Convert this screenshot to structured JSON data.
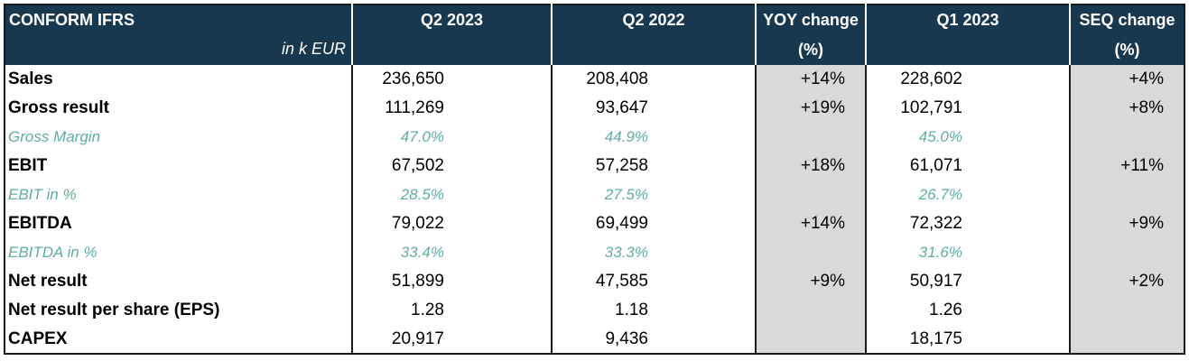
{
  "header": {
    "title": "CONFORM IFRS",
    "unit": "in k EUR",
    "col_q2_2023": "Q2 2023",
    "col_q2_2022": "Q2 2022",
    "col_yoy_line1": "YOY change",
    "col_yoy_line2": "(%)",
    "col_q1_2023": "Q1 2023",
    "col_seq_line1": "SEQ change",
    "col_seq_line2": "(%)"
  },
  "rows": [
    {
      "label": "Sales",
      "q2_2023": "236,650",
      "q2_2022": "208,408",
      "yoy": "+14%",
      "q1_2023": "228,602",
      "seq": "+4%"
    },
    {
      "label": "Gross result",
      "q2_2023": "111,269",
      "q2_2022": "93,647",
      "yoy": "+19%",
      "q1_2023": "102,791",
      "seq": "+8%"
    },
    {
      "label": "Gross Margin",
      "q2_2023": "47.0%",
      "q2_2022": "44.9%",
      "yoy": "",
      "q1_2023": "45.0%",
      "seq": ""
    },
    {
      "label": "EBIT",
      "q2_2023": "67,502",
      "q2_2022": "57,258",
      "yoy": "+18%",
      "q1_2023": "61,071",
      "seq": "+11%"
    },
    {
      "label": "EBIT in %",
      "q2_2023": "28.5%",
      "q2_2022": "27.5%",
      "yoy": "",
      "q1_2023": "26.7%",
      "seq": ""
    },
    {
      "label": "EBITDA",
      "q2_2023": "79,022",
      "q2_2022": "69,499",
      "yoy": "+14%",
      "q1_2023": "72,322",
      "seq": "+9%"
    },
    {
      "label": "EBITDA in %",
      "q2_2023": "33.4%",
      "q2_2022": "33.3%",
      "yoy": "",
      "q1_2023": "31.6%",
      "seq": ""
    },
    {
      "label": "Net result",
      "q2_2023": "51,899",
      "q2_2022": "47,585",
      "yoy": "+9%",
      "q1_2023": "50,917",
      "seq": "+2%"
    },
    {
      "label": "Net result per share (EPS)",
      "q2_2023": "1.28",
      "q2_2022": "1.18",
      "yoy": "",
      "q1_2023": "1.26",
      "seq": ""
    },
    {
      "label": "CAPEX",
      "q2_2023": "20,917",
      "q2_2022": "9,436",
      "yoy": "",
      "q1_2023": "18,175",
      "seq": ""
    }
  ],
  "colors": {
    "header_bg": "#17384f",
    "header_text": "#ffffff",
    "sub_row_text": "#5fada2",
    "change_col_bg": "#d9d9d9"
  }
}
